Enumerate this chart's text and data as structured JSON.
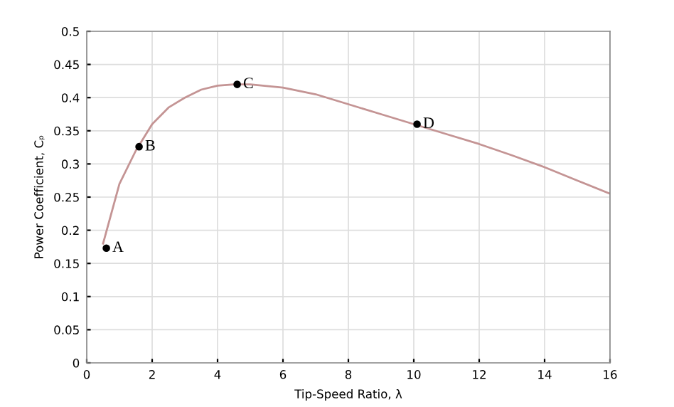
{
  "chart_data": {
    "type": "line",
    "xlabel": "Tip-Speed Ratio, λ",
    "ylabel": "Power Coefficient, Cₚ",
    "xlim": [
      0,
      16
    ],
    "xticks": [
      0,
      2,
      4,
      6,
      8,
      10,
      12,
      14,
      16
    ],
    "ylim": [
      0,
      0.5
    ],
    "yticks": [
      0,
      0.05,
      0.1,
      0.15,
      0.2,
      0.25,
      0.3,
      0.35,
      0.4,
      0.45,
      0.5
    ],
    "grid": true,
    "series": [
      {
        "color": "#c49494",
        "marker": "none",
        "x": [
          0.5,
          1.0,
          1.5,
          2,
          2.5,
          3,
          3.5,
          4,
          4.5,
          5,
          6,
          7,
          8,
          9,
          10,
          11,
          12,
          13,
          14,
          15,
          16
        ],
        "values": [
          0.18,
          0.27,
          0.32,
          0.36,
          0.385,
          0.4,
          0.412,
          0.418,
          0.42,
          0.42,
          0.415,
          0.405,
          0.39,
          0.375,
          0.36,
          0.345,
          0.33,
          0.313,
          0.295,
          0.275,
          0.255
        ]
      },
      {
        "type": "scatter",
        "color": "#000000",
        "marker": "circle",
        "x": [
          0.6,
          1.6,
          4.6,
          10.1
        ],
        "values": [
          0.173,
          0.326,
          0.42,
          0.36
        ]
      }
    ],
    "annotations": [
      {
        "text": "A",
        "x": 0.6,
        "y": 0.173
      },
      {
        "text": "B",
        "x": 1.6,
        "y": 0.326
      },
      {
        "text": "C",
        "x": 4.6,
        "y": 0.42
      },
      {
        "text": "D",
        "x": 10.1,
        "y": 0.36
      }
    ]
  }
}
